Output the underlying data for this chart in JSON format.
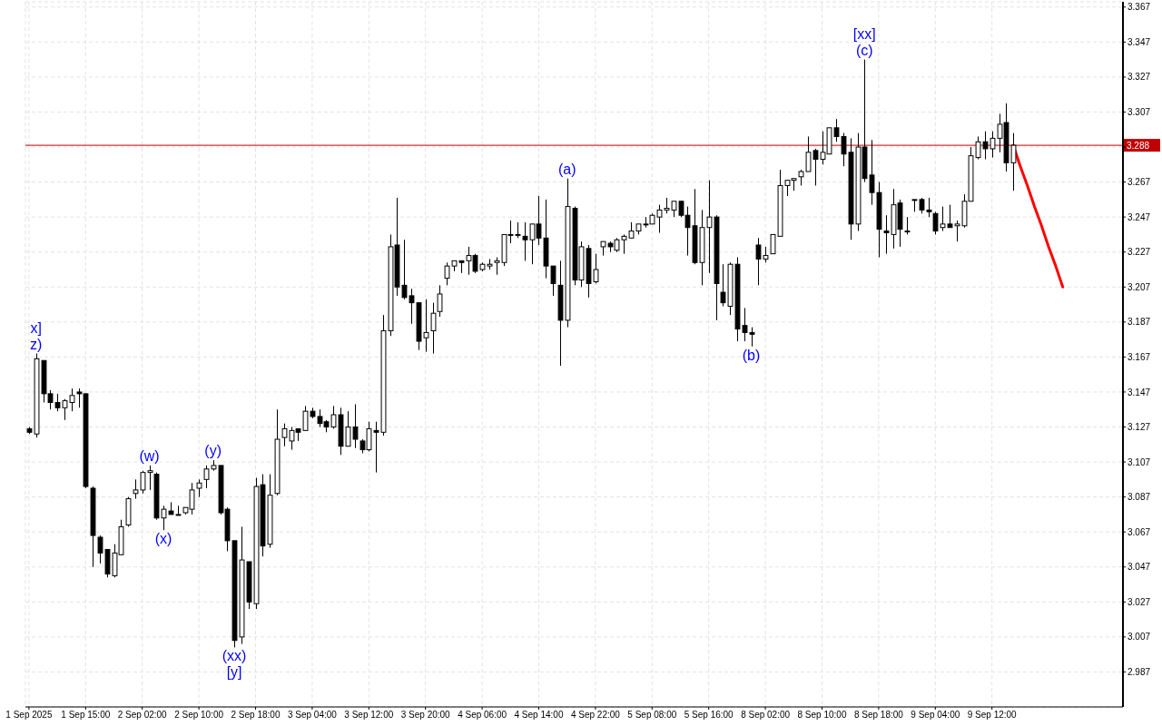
{
  "chart_data": {
    "type": "candlestick",
    "categories": [
      "1 Sep 2025",
      null,
      null,
      null,
      null,
      null,
      null,
      null,
      "1 Sep 15:00",
      null,
      null,
      null,
      null,
      null,
      null,
      null,
      "2 Sep 02:00",
      null,
      null,
      null,
      null,
      null,
      null,
      null,
      "2 Sep 10:00",
      null,
      null,
      null,
      null,
      null,
      null,
      null,
      "2 Sep 18:00",
      null,
      null,
      null,
      null,
      null,
      null,
      null,
      "3 Sep 04:00",
      null,
      null,
      null,
      null,
      null,
      null,
      null,
      "3 Sep 12:00",
      null,
      null,
      null,
      null,
      null,
      null,
      null,
      "3 Sep 20:00",
      null,
      null,
      null,
      null,
      null,
      null,
      null,
      "4 Sep 06:00",
      null,
      null,
      null,
      null,
      null,
      null,
      null,
      "4 Sep 14:00",
      null,
      null,
      null,
      null,
      null,
      null,
      null,
      "4 Sep 22:00",
      null,
      null,
      null,
      null,
      null,
      null,
      null,
      "5 Sep 08:00",
      null,
      null,
      null,
      null,
      null,
      null,
      null,
      "5 Sep 16:00",
      null,
      null,
      null,
      null,
      null,
      null,
      null,
      "8 Sep 02:00",
      null,
      null,
      null,
      null,
      null,
      null,
      null,
      "8 Sep 10:00",
      null,
      null,
      null,
      null,
      null,
      null,
      null,
      "8 Sep 18:00",
      null,
      null,
      null,
      null,
      null,
      null,
      null,
      "9 Sep 04:00",
      null,
      null,
      null,
      null,
      null,
      null,
      null,
      "9 Sep 12:00",
      null,
      null,
      null,
      null,
      null,
      null,
      null,
      null,
      null,
      null,
      null,
      null,
      null,
      null,
      null,
      null,
      null,
      null
    ],
    "ohlc": [
      [
        3.126,
        3.127,
        3.123,
        3.124
      ],
      [
        3.123,
        3.169,
        3.121,
        3.166
      ],
      [
        3.165,
        3.165,
        3.141,
        3.146
      ],
      [
        3.146,
        3.148,
        3.137,
        3.141
      ],
      [
        3.141,
        3.146,
        3.136,
        3.138
      ],
      [
        3.138,
        3.143,
        3.131,
        3.142
      ],
      [
        3.141,
        3.149,
        3.136,
        3.145
      ],
      [
        3.147,
        3.149,
        3.138,
        3.146
      ],
      [
        3.146,
        3.146,
        3.092,
        3.093
      ],
      [
        3.092,
        3.093,
        3.047,
        3.065
      ],
      [
        3.064,
        3.065,
        3.049,
        3.055
      ],
      [
        3.057,
        3.057,
        3.041,
        3.043
      ],
      [
        3.042,
        3.06,
        3.041,
        3.055
      ],
      [
        3.054,
        3.074,
        3.054,
        3.07
      ],
      [
        3.071,
        3.087,
        3.07,
        3.086
      ],
      [
        3.089,
        3.097,
        3.086,
        3.091
      ],
      [
        3.091,
        3.102,
        3.089,
        3.101
      ],
      [
        3.101,
        3.105,
        3.091,
        3.102
      ],
      [
        3.1,
        3.101,
        3.074,
        3.075
      ],
      [
        3.075,
        3.082,
        3.068,
        3.08
      ],
      [
        3.079,
        3.084,
        3.077,
        3.077
      ],
      [
        3.077,
        3.082,
        3.077,
        3.077
      ],
      [
        3.078,
        3.081,
        3.077,
        3.081
      ],
      [
        3.08,
        3.095,
        3.077,
        3.091
      ],
      [
        3.092,
        3.097,
        3.087,
        3.095
      ],
      [
        3.097,
        3.105,
        3.092,
        3.103
      ],
      [
        3.103,
        3.108,
        3.102,
        3.105
      ],
      [
        3.105,
        3.105,
        3.077,
        3.078
      ],
      [
        3.08,
        3.081,
        3.056,
        3.062
      ],
      [
        3.062,
        3.062,
        3.001,
        3.005
      ],
      [
        3.007,
        3.07,
        3.003,
        3.051
      ],
      [
        3.05,
        3.05,
        3.023,
        3.027
      ],
      [
        3.026,
        3.098,
        3.023,
        3.093
      ],
      [
        3.094,
        3.1,
        3.053,
        3.059
      ],
      [
        3.06,
        3.1,
        3.058,
        3.088
      ],
      [
        3.089,
        3.137,
        3.088,
        3.12
      ],
      [
        3.121,
        3.129,
        3.116,
        3.126
      ],
      [
        3.119,
        3.127,
        3.114,
        3.125
      ],
      [
        3.126,
        3.126,
        3.119,
        3.124
      ],
      [
        3.125,
        3.139,
        3.125,
        3.136
      ],
      [
        3.136,
        3.138,
        3.132,
        3.133
      ],
      [
        3.133,
        3.137,
        3.127,
        3.129
      ],
      [
        3.13,
        3.131,
        3.124,
        3.127
      ],
      [
        3.127,
        3.139,
        3.126,
        3.134
      ],
      [
        3.134,
        3.138,
        3.111,
        3.116
      ],
      [
        3.116,
        3.136,
        3.116,
        3.127
      ],
      [
        3.127,
        3.14,
        3.115,
        3.12
      ],
      [
        3.119,
        3.12,
        3.112,
        3.114
      ],
      [
        3.114,
        3.13,
        3.113,
        3.126
      ],
      [
        3.125,
        3.13,
        3.101,
        3.124
      ],
      [
        3.124,
        3.191,
        3.122,
        3.182
      ],
      [
        3.182,
        3.237,
        3.179,
        3.23
      ],
      [
        3.231,
        3.258,
        3.202,
        3.207
      ],
      [
        3.208,
        3.234,
        3.2,
        3.201
      ],
      [
        3.202,
        3.206,
        3.186,
        3.198
      ],
      [
        3.198,
        3.198,
        3.171,
        3.176
      ],
      [
        3.178,
        3.2,
        3.17,
        3.181
      ],
      [
        3.182,
        3.198,
        3.169,
        3.192
      ],
      [
        3.193,
        3.208,
        3.19,
        3.203
      ],
      [
        3.212,
        3.221,
        3.208,
        3.219
      ],
      [
        3.219,
        3.222,
        3.216,
        3.222
      ],
      [
        3.222,
        3.222,
        3.215,
        3.221
      ],
      [
        3.222,
        3.23,
        3.214,
        3.225
      ],
      [
        3.225,
        3.226,
        3.215,
        3.216
      ],
      [
        3.217,
        3.221,
        3.216,
        3.22
      ],
      [
        3.219,
        3.223,
        3.217,
        3.22
      ],
      [
        3.221,
        3.224,
        3.214,
        3.222
      ],
      [
        3.221,
        3.237,
        3.219,
        3.237
      ],
      [
        3.237,
        3.245,
        3.232,
        3.237
      ],
      [
        3.237,
        3.244,
        3.235,
        3.237
      ],
      [
        3.236,
        3.244,
        3.222,
        3.234
      ],
      [
        3.234,
        3.243,
        3.22,
        3.243
      ],
      [
        3.243,
        3.259,
        3.231,
        3.235
      ],
      [
        3.235,
        3.257,
        3.212,
        3.219
      ],
      [
        3.219,
        3.219,
        3.202,
        3.209
      ],
      [
        3.208,
        3.222,
        3.162,
        3.188
      ],
      [
        3.188,
        3.269,
        3.184,
        3.253
      ],
      [
        3.252,
        3.253,
        3.208,
        3.211
      ],
      [
        3.211,
        3.233,
        3.207,
        3.23
      ],
      [
        3.229,
        3.231,
        3.201,
        3.209
      ],
      [
        3.21,
        3.226,
        3.209,
        3.217
      ],
      [
        3.23,
        3.233,
        3.225,
        3.233
      ],
      [
        3.232,
        3.233,
        3.227,
        3.23
      ],
      [
        3.228,
        3.235,
        3.227,
        3.234
      ],
      [
        3.234,
        3.237,
        3.226,
        3.236
      ],
      [
        3.235,
        3.244,
        3.235,
        3.239
      ],
      [
        3.239,
        3.243,
        3.237,
        3.243
      ],
      [
        3.243,
        3.247,
        3.241,
        3.243
      ],
      [
        3.243,
        3.249,
        3.243,
        3.248
      ],
      [
        3.247,
        3.254,
        3.238,
        3.251
      ],
      [
        3.251,
        3.258,
        3.249,
        3.252
      ],
      [
        3.251,
        3.256,
        3.247,
        3.256
      ],
      [
        3.256,
        3.256,
        3.247,
        3.248
      ],
      [
        3.248,
        3.253,
        3.225,
        3.241
      ],
      [
        3.242,
        3.263,
        3.22,
        3.221
      ],
      [
        3.221,
        3.251,
        3.208,
        3.241
      ],
      [
        3.241,
        3.268,
        3.215,
        3.247
      ],
      [
        3.247,
        3.248,
        3.188,
        3.209
      ],
      [
        3.204,
        3.22,
        3.196,
        3.198
      ],
      [
        3.196,
        3.221,
        3.191,
        3.22
      ],
      [
        3.22,
        3.224,
        3.176,
        3.183
      ],
      [
        3.185,
        3.195,
        3.176,
        3.181
      ],
      [
        3.181,
        3.184,
        3.173,
        3.18
      ],
      [
        3.231,
        3.235,
        3.208,
        3.223
      ],
      [
        3.223,
        3.23,
        3.221,
        3.225
      ],
      [
        3.226,
        3.237,
        3.226,
        3.237
      ],
      [
        3.236,
        3.274,
        3.236,
        3.265
      ],
      [
        3.265,
        3.268,
        3.259,
        3.268
      ],
      [
        3.268,
        3.269,
        3.262,
        3.269
      ],
      [
        3.27,
        3.274,
        3.265,
        3.273
      ],
      [
        3.273,
        3.293,
        3.273,
        3.284
      ],
      [
        3.285,
        3.286,
        3.265,
        3.28
      ],
      [
        3.28,
        3.296,
        3.277,
        3.284
      ],
      [
        3.283,
        3.298,
        3.283,
        3.298
      ],
      [
        3.298,
        3.303,
        3.29,
        3.293
      ],
      [
        3.293,
        3.295,
        3.276,
        3.283
      ],
      [
        3.284,
        3.292,
        3.234,
        3.243
      ],
      [
        3.243,
        3.295,
        3.239,
        3.287
      ],
      [
        3.287,
        3.337,
        3.267,
        3.269
      ],
      [
        3.271,
        3.291,
        3.254,
        3.261
      ],
      [
        3.261,
        3.267,
        3.224,
        3.24
      ],
      [
        3.239,
        3.248,
        3.226,
        3.238
      ],
      [
        3.237,
        3.263,
        3.229,
        3.254
      ],
      [
        3.255,
        3.257,
        3.23,
        3.24
      ],
      [
        3.239,
        3.247,
        3.237,
        3.239
      ],
      [
        3.257,
        3.257,
        3.25,
        3.257
      ],
      [
        3.257,
        3.258,
        3.249,
        3.251
      ],
      [
        3.251,
        3.258,
        3.247,
        3.25
      ],
      [
        3.249,
        3.25,
        3.237,
        3.239
      ],
      [
        3.241,
        3.253,
        3.239,
        3.243
      ],
      [
        3.243,
        3.254,
        3.241,
        3.241
      ],
      [
        3.242,
        3.245,
        3.233,
        3.243
      ],
      [
        3.242,
        3.26,
        3.241,
        3.256
      ],
      [
        3.256,
        3.287,
        3.256,
        3.282
      ],
      [
        3.281,
        3.293,
        3.28,
        3.29
      ],
      [
        3.29,
        3.296,
        3.28,
        3.286
      ],
      [
        3.286,
        3.296,
        3.281,
        3.292
      ],
      [
        3.292,
        3.306,
        3.284,
        3.3
      ],
      [
        3.301,
        3.312,
        3.273,
        3.278
      ],
      [
        3.278,
        3.295,
        3.262,
        3.288
      ],
      null,
      null,
      null,
      null,
      null,
      null,
      null,
      null,
      null,
      null,
      null,
      null,
      null,
      null,
      null
    ],
    "value_labels": [
      null,
      "x]\nz)",
      null,
      null,
      null,
      null,
      null,
      null,
      null,
      null,
      null,
      null,
      null,
      null,
      null,
      null,
      null,
      "(w)",
      null,
      "(x)",
      null,
      null,
      null,
      null,
      null,
      null,
      "(y)",
      null,
      null,
      "(xx)\n[y]",
      null,
      null,
      null,
      null,
      null,
      null,
      null,
      null,
      null,
      null,
      null,
      null,
      null,
      null,
      null,
      null,
      null,
      null,
      null,
      null,
      null,
      null,
      null,
      null,
      null,
      null,
      null,
      null,
      null,
      null,
      null,
      null,
      null,
      null,
      null,
      null,
      null,
      null,
      null,
      null,
      null,
      null,
      null,
      null,
      null,
      null,
      "(a)",
      null,
      null,
      null,
      null,
      null,
      null,
      null,
      null,
      null,
      null,
      null,
      null,
      null,
      null,
      null,
      null,
      null,
      null,
      null,
      null,
      null,
      null,
      null,
      null,
      null,
      "(b)",
      null,
      null,
      null,
      null,
      null,
      null,
      null,
      null,
      null,
      null,
      null,
      null,
      null,
      null,
      null,
      "[xx]\n(c)",
      null,
      null,
      null,
      null,
      null,
      null,
      null,
      null,
      null,
      null,
      null,
      null,
      null,
      null,
      null,
      null,
      null,
      null,
      null,
      null,
      null,
      null,
      null,
      null,
      null,
      null,
      null,
      null,
      null,
      null,
      null,
      null,
      null,
      null,
      null,
      null
    ],
    "color": "#000000",
    "ylim": [
      2.967,
      3.37
    ],
    "yticks": [
      3.367,
      3.347,
      3.327,
      3.307,
      {
        "value": 3.287,
        "label": null
      },
      3.267,
      3.247,
      3.227,
      3.207,
      3.187,
      3.167,
      3.147,
      3.127,
      3.107,
      3.087,
      3.067,
      3.047,
      3.027,
      3.007,
      2.987
    ],
    "grid": true,
    "series": [
      {
        "type": "line",
        "color": "#ff0000",
        "values": [
          null,
          null,
          null,
          null,
          null,
          null,
          null,
          null,
          null,
          null,
          null,
          null,
          null,
          null,
          null,
          null,
          null,
          null,
          null,
          null,
          null,
          null,
          null,
          null,
          null,
          null,
          null,
          null,
          null,
          null,
          null,
          null,
          null,
          null,
          null,
          null,
          null,
          null,
          null,
          null,
          null,
          null,
          null,
          null,
          null,
          null,
          null,
          null,
          null,
          null,
          null,
          null,
          null,
          null,
          null,
          null,
          null,
          null,
          null,
          null,
          null,
          null,
          null,
          null,
          null,
          null,
          null,
          null,
          null,
          null,
          null,
          null,
          null,
          null,
          null,
          null,
          null,
          null,
          null,
          null,
          null,
          null,
          null,
          null,
          null,
          null,
          null,
          null,
          null,
          null,
          null,
          null,
          null,
          null,
          null,
          null,
          null,
          null,
          null,
          null,
          null,
          null,
          null,
          null,
          null,
          null,
          null,
          null,
          null,
          null,
          null,
          null,
          null,
          null,
          null,
          null,
          null,
          null,
          null,
          null,
          null,
          null,
          null,
          null,
          null,
          null,
          null,
          null,
          null,
          null,
          null,
          null,
          null,
          null,
          null,
          null,
          null,
          null,
          null,
          3.288,
          3.276,
          3.265,
          3.253,
          3.242,
          3.23,
          3.219,
          3.207,
          null,
          null,
          null,
          null,
          null,
          null,
          null,
          null
        ]
      }
    ],
    "ref_lines": [
      {
        "axis": "y",
        "value": 3.288,
        "label": "3.288",
        "color": "#c00000"
      }
    ]
  }
}
